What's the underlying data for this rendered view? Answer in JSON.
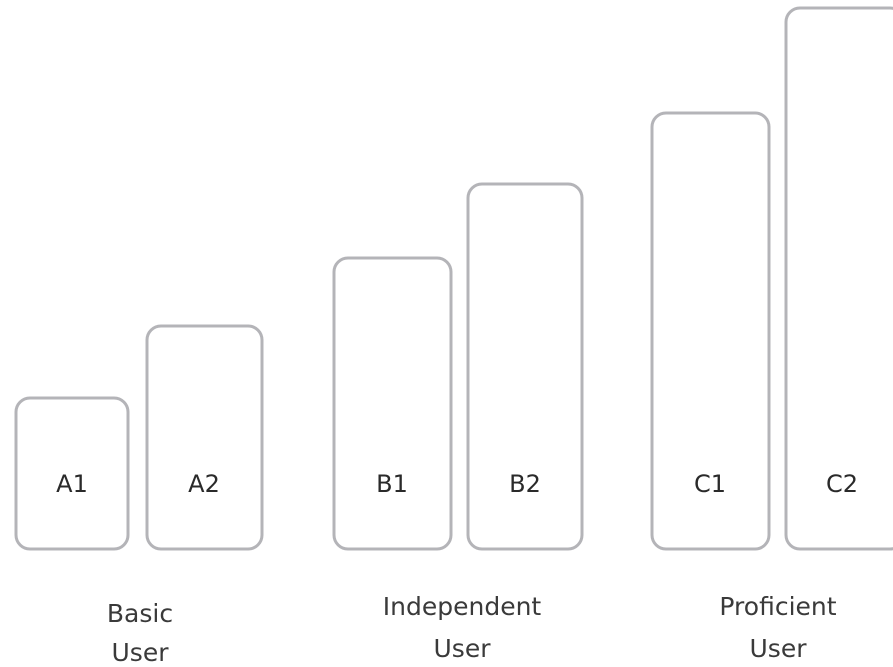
{
  "diagram": {
    "levels": [
      {
        "label": "A1",
        "height_rank": 1
      },
      {
        "label": "A2",
        "height_rank": 2
      },
      {
        "label": "B1",
        "height_rank": 3
      },
      {
        "label": "B2",
        "height_rank": 4
      },
      {
        "label": "C1",
        "height_rank": 5
      },
      {
        "label": "C2",
        "height_rank": 6
      }
    ],
    "groups": [
      {
        "line1": "Basic",
        "line2": "User"
      },
      {
        "line1": "Independent",
        "line2": "User"
      },
      {
        "line1": "Proficient",
        "line2": "User"
      }
    ],
    "colors": {
      "outline": "#b4b4b8",
      "text": "#2a2a2a"
    }
  }
}
